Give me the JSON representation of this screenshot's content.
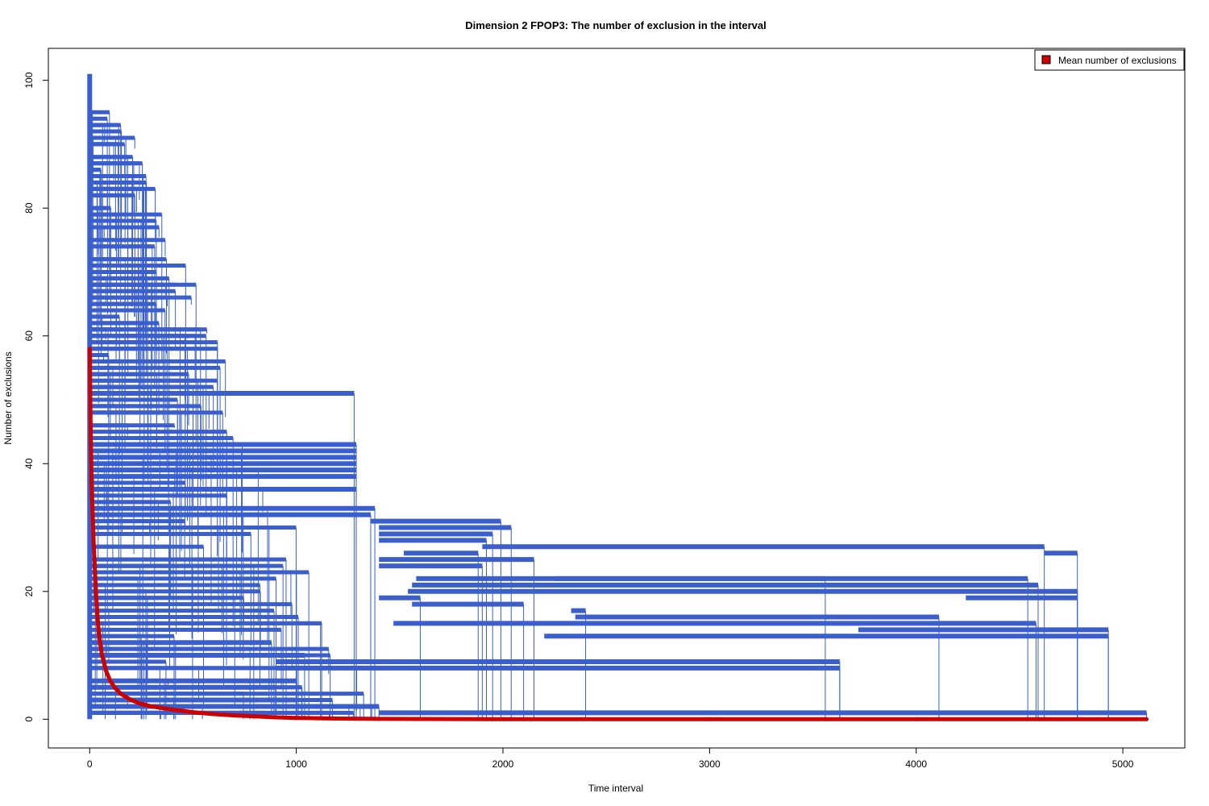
{
  "chart_data": {
    "type": "line",
    "title": "Dimension 2 FPOP3: The number of exclusion in the interval",
    "xlabel": "Time interval",
    "ylabel": "Number of exclusions",
    "xlim": [
      -200,
      5300
    ],
    "ylim": [
      -4.5,
      105
    ],
    "x_ticks": [
      0,
      1000,
      2000,
      3000,
      4000,
      5000
    ],
    "y_ticks": [
      0,
      20,
      40,
      60,
      80,
      100
    ],
    "grid": false,
    "legend": {
      "position": "top-right",
      "entries": [
        "Mean number of exclusions"
      ]
    },
    "colors": {
      "exclusions": "#3a5fcd",
      "mean": "#cd0000"
    },
    "series": [
      {
        "name": "Mean number of exclusions",
        "color": "#cd0000",
        "x": [
          0,
          2,
          5,
          10,
          20,
          30,
          40,
          50,
          60,
          80,
          100,
          120,
          150,
          200,
          250,
          300,
          400,
          500,
          600,
          700,
          800,
          900,
          1000,
          1100,
          1200,
          1400,
          2000,
          3000,
          4000,
          5115
        ],
        "y": [
          58,
          52,
          44,
          36,
          27,
          20,
          15,
          12,
          10,
          7.5,
          6,
          5,
          4,
          3,
          2.4,
          2,
          1.5,
          1.1,
          0.8,
          0.6,
          0.45,
          0.3,
          0.2,
          0.15,
          0.1,
          0.05,
          0.02,
          0.01,
          0.01,
          0.01
        ]
      }
    ],
    "exclusion_runs": [
      {
        "start": 0,
        "end": 1280,
        "value": 51
      },
      {
        "start": 0,
        "end": 1290,
        "value": 43
      },
      {
        "start": 0,
        "end": 1290,
        "value": 42
      },
      {
        "start": 0,
        "end": 1290,
        "value": 41
      },
      {
        "start": 0,
        "end": 1290,
        "value": 40
      },
      {
        "start": 0,
        "end": 1290,
        "value": 39
      },
      {
        "start": 0,
        "end": 1290,
        "value": 38
      },
      {
        "start": 0,
        "end": 1290,
        "value": 36
      },
      {
        "start": 0,
        "end": 1380,
        "value": 33
      },
      {
        "start": 0,
        "end": 1360,
        "value": 32
      },
      {
        "start": 1360,
        "end": 1990,
        "value": 31
      },
      {
        "start": 1400,
        "end": 2040,
        "value": 30
      },
      {
        "start": 1400,
        "end": 1950,
        "value": 29
      },
      {
        "start": 1400,
        "end": 1920,
        "value": 28
      },
      {
        "start": 1900,
        "end": 4620,
        "value": 27
      },
      {
        "start": 4620,
        "end": 4780,
        "value": 26
      },
      {
        "start": 1520,
        "end": 1880,
        "value": 26
      },
      {
        "start": 1400,
        "end": 2150,
        "value": 25
      },
      {
        "start": 1400,
        "end": 1900,
        "value": 24
      },
      {
        "start": 2250,
        "end": 4540,
        "value": 22
      },
      {
        "start": 1580,
        "end": 3560,
        "value": 22
      },
      {
        "start": 1560,
        "end": 4590,
        "value": 21
      },
      {
        "start": 1540,
        "end": 4780,
        "value": 20
      },
      {
        "start": 1400,
        "end": 1600,
        "value": 19
      },
      {
        "start": 4240,
        "end": 4780,
        "value": 19
      },
      {
        "start": 1560,
        "end": 2100,
        "value": 18
      },
      {
        "start": 2330,
        "end": 2400,
        "value": 17
      },
      {
        "start": 2350,
        "end": 4110,
        "value": 16
      },
      {
        "start": 1470,
        "end": 4580,
        "value": 15
      },
      {
        "start": 3720,
        "end": 4930,
        "value": 14
      },
      {
        "start": 2200,
        "end": 4930,
        "value": 13
      },
      {
        "start": 0,
        "end": 880,
        "value": 12
      },
      {
        "start": 0,
        "end": 1040,
        "value": 10
      },
      {
        "start": 900,
        "end": 3630,
        "value": 9
      },
      {
        "start": 900,
        "end": 3630,
        "value": 8
      },
      {
        "start": 0,
        "end": 1000,
        "value": 6
      },
      {
        "start": 0,
        "end": 900,
        "value": 5
      },
      {
        "start": 0,
        "end": 1000,
        "value": 3
      },
      {
        "start": 0,
        "end": 1400,
        "value": 2
      },
      {
        "start": 1400,
        "end": 5115,
        "value": 1
      }
    ]
  }
}
